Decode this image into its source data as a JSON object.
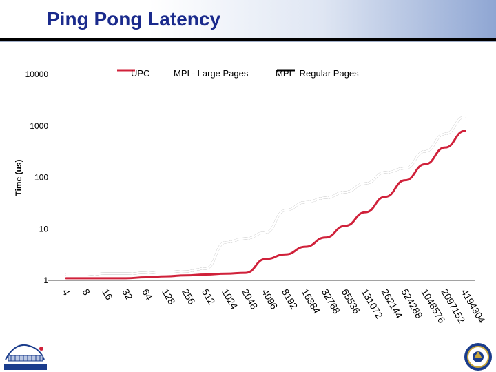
{
  "title": "Ping Pong Latency",
  "chart_data": {
    "type": "line",
    "title": "Ping Pong Latency",
    "xlabel": "",
    "ylabel": "Time (us)",
    "yscale": "log",
    "ylim": [
      1,
      10000
    ],
    "y_ticks": [
      "10000",
      "1000",
      "100",
      "10",
      "1"
    ],
    "categories": [
      "4",
      "8",
      "16",
      "32",
      "64",
      "128",
      "256",
      "512",
      "1024",
      "2048",
      "4096",
      "8192",
      "16384",
      "32768",
      "65536",
      "131072",
      "262144",
      "524288",
      "1048576",
      "2097152",
      "4194304"
    ],
    "legend_position": "top",
    "series": [
      {
        "name": "UPC",
        "color": "#d0213a",
        "values": [
          1.1,
          1.1,
          1.1,
          1.1,
          1.15,
          1.2,
          1.25,
          1.3,
          1.35,
          1.4,
          2.6,
          3.2,
          4.5,
          6.8,
          11.5,
          21,
          42,
          88,
          180,
          380,
          800
        ]
      },
      {
        "name": "MPI - Large Pages",
        "color": "#ffffff",
        "values": [
          1.3,
          1.3,
          1.35,
          1.35,
          1.4,
          1.45,
          1.5,
          1.7,
          5.5,
          6.5,
          8.5,
          23,
          33,
          40,
          52,
          76,
          125,
          150,
          320,
          700,
          1500
        ]
      },
      {
        "name": "MPI - Regular Pages",
        "color": "#000000",
        "values": [
          1.3,
          1.3,
          1.35,
          1.35,
          1.4,
          1.45,
          1.5,
          1.7,
          5.5,
          6.5,
          8.5,
          23,
          33,
          40,
          52,
          76,
          125,
          150,
          320,
          700,
          1500
        ]
      }
    ]
  }
}
